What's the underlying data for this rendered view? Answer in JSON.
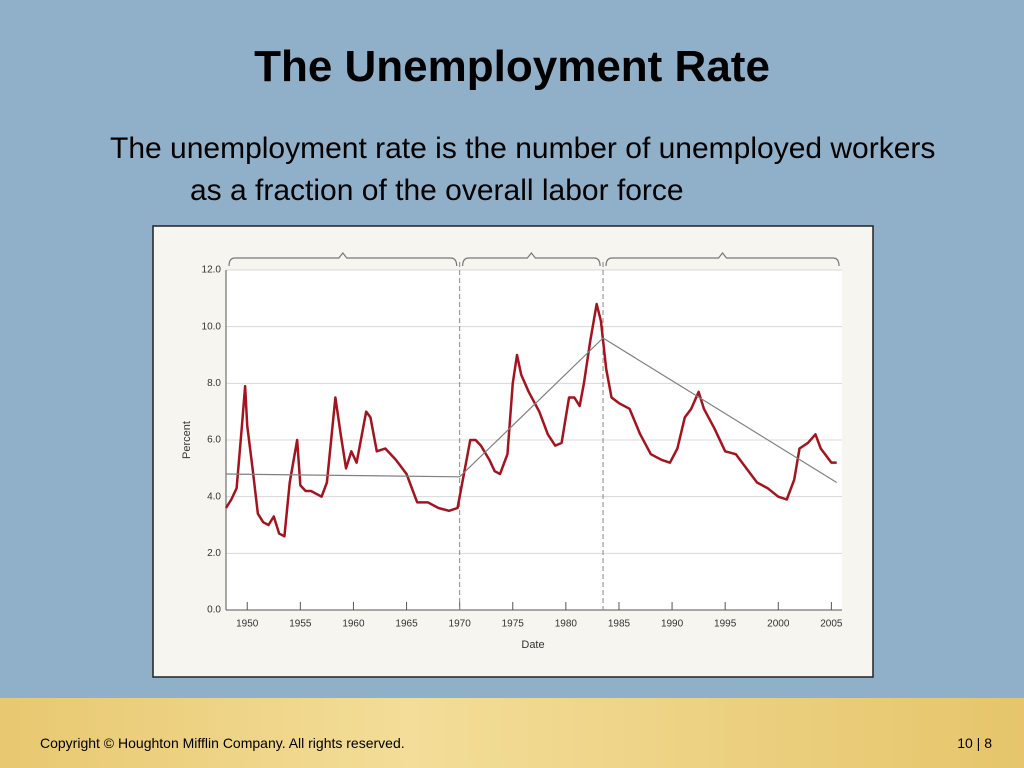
{
  "slide": {
    "title": "The Unemployment Rate",
    "subtitle": "The unemployment rate is the number of unemployed workers as a fraction of the overall labor force",
    "footer_left": "Copyright © Houghton Mifflin Company.  All rights reserved.",
    "footer_right": "10 | 8"
  },
  "chart_data": {
    "type": "line",
    "xlabel": "Date",
    "ylabel": "Percent",
    "xlim": [
      1948,
      2006
    ],
    "xticks": [
      1950,
      1955,
      1960,
      1965,
      1970,
      1975,
      1980,
      1985,
      1990,
      1995,
      2000,
      2005
    ],
    "ylim": [
      0,
      12
    ],
    "yticks": [
      {
        "value": 0,
        "label": "0.0"
      },
      {
        "value": 2,
        "label": "2.0"
      },
      {
        "value": 4,
        "label": "4.0"
      },
      {
        "value": 6,
        "label": "6.0"
      },
      {
        "value": 8,
        "label": "8.0"
      },
      {
        "value": 10,
        "label": "10.0"
      },
      {
        "value": 12,
        "label": "12.0"
      }
    ],
    "grid": true,
    "dividers": [
      1970,
      1983.5
    ],
    "series": [
      {
        "color": "#a3141e",
        "x": [
          1948,
          1948.5,
          1949,
          1949.5,
          1949.8,
          1950,
          1950.5,
          1951,
          1951.5,
          1952,
          1952.5,
          1953,
          1953.5,
          1954,
          1954.7,
          1955,
          1955.5,
          1956,
          1956.5,
          1957,
          1957.5,
          1958.3,
          1958.8,
          1959.3,
          1959.8,
          1960.3,
          1961.2,
          1961.6,
          1962.2,
          1963,
          1964,
          1965,
          1966,
          1967,
          1968,
          1969,
          1969.8,
          1970.5,
          1971,
          1971.5,
          1972,
          1972.8,
          1973.3,
          1973.8,
          1974.5,
          1975,
          1975.4,
          1975.8,
          1976.5,
          1977.5,
          1978.3,
          1979,
          1979.6,
          1980.3,
          1980.8,
          1981.3,
          1981.7,
          1982.3,
          1982.9,
          1983.3,
          1983.8,
          1984.3,
          1985,
          1986,
          1987,
          1988,
          1989,
          1989.8,
          1990.5,
          1991.2,
          1991.8,
          1992.5,
          1993,
          1994,
          1995,
          1996,
          1997,
          1998,
          1999,
          2000,
          2000.8,
          2001.5,
          2002,
          2002.8,
          2003.5,
          2004,
          2005,
          2005.5
        ],
        "values": [
          3.6,
          3.9,
          4.3,
          6.5,
          7.9,
          6.5,
          5.0,
          3.4,
          3.1,
          3.0,
          3.3,
          2.7,
          2.6,
          4.5,
          6.0,
          4.4,
          4.2,
          4.2,
          4.1,
          4.0,
          4.5,
          7.5,
          6.2,
          5.0,
          5.6,
          5.2,
          7.0,
          6.8,
          5.6,
          5.7,
          5.3,
          4.8,
          3.8,
          3.8,
          3.6,
          3.5,
          3.6,
          5.0,
          6.0,
          6.0,
          5.8,
          5.3,
          4.9,
          4.8,
          5.5,
          8.0,
          9.0,
          8.3,
          7.7,
          7.0,
          6.2,
          5.8,
          5.9,
          7.5,
          7.5,
          7.2,
          8.0,
          9.5,
          10.8,
          10.2,
          8.5,
          7.5,
          7.3,
          7.1,
          6.2,
          5.5,
          5.3,
          5.2,
          5.7,
          6.8,
          7.1,
          7.7,
          7.1,
          6.4,
          5.6,
          5.5,
          5.0,
          4.5,
          4.3,
          4.0,
          3.9,
          4.6,
          5.7,
          5.9,
          6.2,
          5.7,
          5.2,
          5.2
        ]
      },
      {
        "color": "#808080",
        "x": [
          1948,
          1970,
          1983.5,
          2005.5
        ],
        "values": [
          4.8,
          4.7,
          9.6,
          4.5
        ]
      }
    ]
  }
}
